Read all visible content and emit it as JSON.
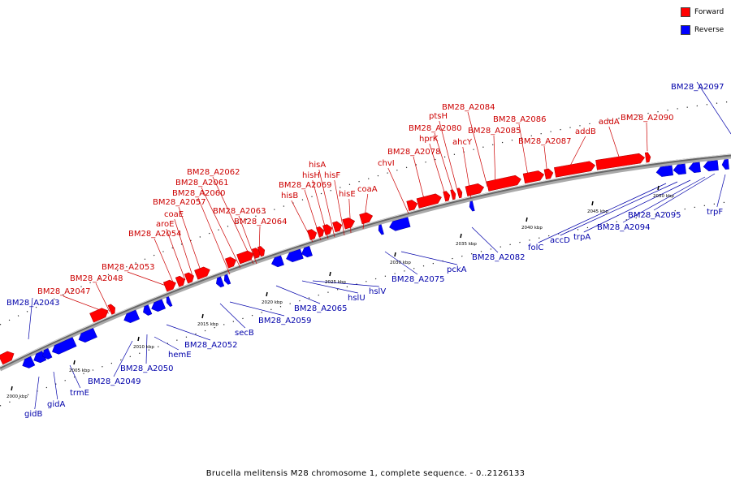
{
  "legend": {
    "forward_label": "Forward",
    "reverse_label": "Reverse",
    "forward_color": "#ff0000",
    "reverse_color": "#0000ff"
  },
  "caption": "Brucella melitensis M28 chromosome 1, complete sequence. - 0..2126133",
  "scale": {
    "ticks": [
      "2000 kbp",
      "2005 kbp",
      "2010 kbp",
      "2015 kbp",
      "2020 kbp",
      "2025 kbp",
      "2030 kbp",
      "2035 kbp",
      "2040 kbp",
      "2045 kbp",
      "2050 kbp"
    ]
  },
  "forward_genes": [
    "BM28_A2047",
    "BM28_A2048",
    "BM28_A2053",
    "BM28_A2054",
    "aroE",
    "coaE",
    "BM28_A2057",
    "BM28_A2060",
    "BM28_A2061",
    "BM28_A2062",
    "BM28_A2063",
    "BM28_A2064",
    "hisB",
    "BM28_A2069",
    "hisH",
    "hisA",
    "hisF",
    "hisE",
    "coaA",
    "chvI",
    "BM28_A2078",
    "hprK",
    "BM28_A2080",
    "ptsH",
    "ahcY",
    "BM28_A2084",
    "BM28_A2085",
    "BM28_A2086",
    "BM28_A2087",
    "addB",
    "addA",
    "BM28_A2090"
  ],
  "reverse_genes": [
    "BM28_A2043",
    "gidB",
    "gidA",
    "trmE",
    "BM28_A2049",
    "BM28_A2050",
    "hemE",
    "BM28_A2052",
    "secB",
    "BM28_A2059",
    "BM28_A2065",
    "hslU",
    "hslV",
    "BM28_A2075",
    "pckA",
    "BM28_A2082",
    "folC",
    "accD",
    "trpA",
    "BM28_A2094",
    "BM28_A2095",
    "trpF",
    "BM28_A2097"
  ]
}
